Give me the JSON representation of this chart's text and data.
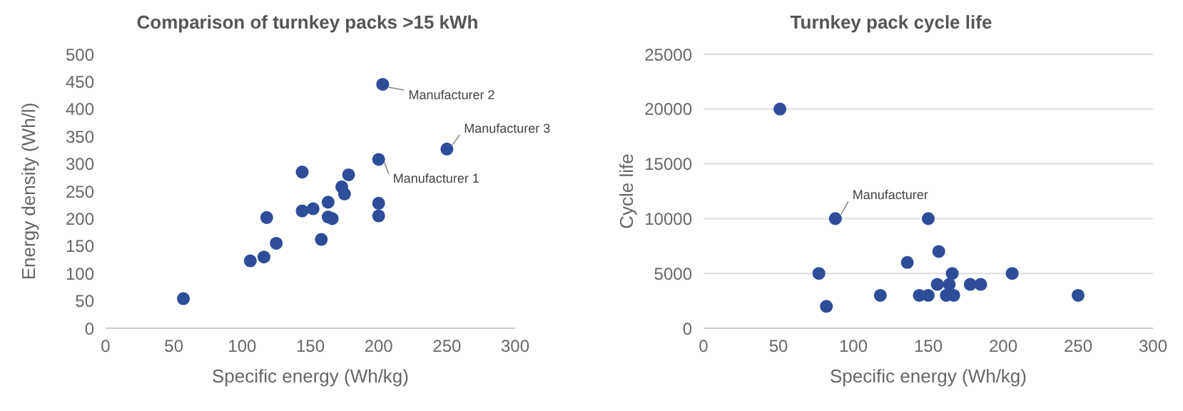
{
  "chart_data": [
    {
      "type": "scatter",
      "title": "Comparison of turnkey packs >15 kWh",
      "xlabel": "Specific energy (Wh/kg)",
      "ylabel": "Energy density (Wh/l)",
      "xlim": [
        0,
        300
      ],
      "xticks": [
        0,
        50,
        100,
        150,
        200,
        250,
        300
      ],
      "ylim": [
        0,
        500
      ],
      "yticks": [
        0,
        50,
        100,
        150,
        200,
        250,
        300,
        350,
        400,
        450,
        500
      ],
      "grid": false,
      "legend": false,
      "marker": "circle",
      "series": [
        {
          "color": "#2e4d99",
          "x": [
            57,
            106,
            116,
            118,
            125,
            144,
            144,
            152,
            158,
            163,
            163,
            166,
            173,
            175,
            178,
            200,
            200,
            200,
            203,
            250
          ],
          "values": [
            54,
            123,
            130,
            202,
            155,
            285,
            214,
            218,
            162,
            230,
            203,
            200,
            258,
            245,
            280,
            308,
            228,
            205,
            445,
            327
          ]
        }
      ],
      "annotations": [
        {
          "text": "Manufacturer 2",
          "x": 203,
          "y": 445
        },
        {
          "text": "Manufacturer 3",
          "x": 250,
          "y": 327
        },
        {
          "text": "Manufacturer 1",
          "x": 200,
          "y": 308
        }
      ]
    },
    {
      "type": "scatter",
      "title": "Turnkey pack cycle life",
      "xlabel": "Specific energy (Wh/kg)",
      "ylabel": "Cycle life",
      "xlim": [
        0,
        300
      ],
      "xticks": [
        0,
        50,
        100,
        150,
        200,
        250,
        300
      ],
      "ylim": [
        0,
        25000
      ],
      "yticks": [
        0,
        5000,
        10000,
        15000,
        20000,
        25000
      ],
      "grid": "y",
      "legend": false,
      "marker": "circle",
      "series": [
        {
          "color": "#2e4d99",
          "x": [
            51,
            88,
            150,
            77,
            82,
            118,
            136,
            144,
            150,
            156,
            157,
            162,
            164,
            166,
            167,
            178,
            185,
            206,
            250
          ],
          "values": [
            20000,
            10000,
            10000,
            5000,
            2000,
            3000,
            6000,
            3000,
            3000,
            4000,
            7000,
            3000,
            4000,
            5000,
            3000,
            4000,
            4000,
            5000,
            3000
          ]
        }
      ],
      "annotations": [
        {
          "text": "Manufacturer",
          "x": 88,
          "y": 10000
        }
      ]
    }
  ]
}
